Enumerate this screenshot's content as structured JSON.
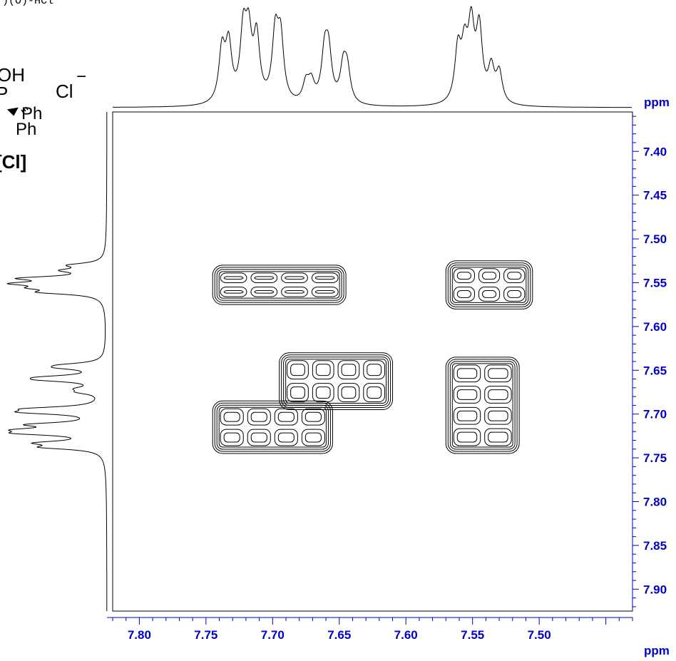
{
  "chart_data": {
    "type": "heatmap",
    "title": "",
    "x_axis": {
      "unit_label": "ppm",
      "range": [
        7.82,
        7.43
      ],
      "reversed": true,
      "tick_labels": [
        "7.80",
        "7.75",
        "7.70",
        "7.65",
        "7.60",
        "7.55",
        "7.50"
      ]
    },
    "y_axis": {
      "unit_label": "ppm",
      "range": [
        7.355,
        7.925
      ],
      "reversed": true,
      "tick_labels": [
        "7.40",
        "7.45",
        "7.50",
        "7.55",
        "7.60",
        "7.65",
        "7.70",
        "7.75",
        "7.80",
        "7.85",
        "7.90"
      ]
    },
    "projection_peaks": [
      {
        "ppm": 7.738,
        "height": 0.73
      },
      {
        "ppm": 7.733,
        "height": 0.78
      },
      {
        "ppm": 7.722,
        "height": 0.93
      },
      {
        "ppm": 7.718,
        "height": 0.85
      },
      {
        "ppm": 7.712,
        "height": 0.88
      },
      {
        "ppm": 7.698,
        "height": 0.92
      },
      {
        "ppm": 7.694,
        "height": 0.86
      },
      {
        "ppm": 7.675,
        "height": 0.27
      },
      {
        "ppm": 7.671,
        "height": 0.27
      },
      {
        "ppm": 7.661,
        "height": 0.65
      },
      {
        "ppm": 7.658,
        "height": 0.65
      },
      {
        "ppm": 7.647,
        "height": 0.48
      },
      {
        "ppm": 7.644,
        "height": 0.44
      },
      {
        "ppm": 7.561,
        "height": 0.73
      },
      {
        "ppm": 7.556,
        "height": 0.68
      },
      {
        "ppm": 7.551,
        "height": 1.0
      },
      {
        "ppm": 7.545,
        "height": 1.0
      },
      {
        "ppm": 7.536,
        "height": 0.47
      },
      {
        "ppm": 7.53,
        "height": 0.43
      }
    ],
    "cross_peak_regions": [
      {
        "x": [
          7.745,
          7.645
        ],
        "y": [
          7.53,
          7.575
        ]
      },
      {
        "x": [
          7.57,
          7.505
        ],
        "y": [
          7.525,
          7.58
        ]
      },
      {
        "x": [
          7.745,
          7.655
        ],
        "y": [
          7.685,
          7.745
        ]
      },
      {
        "x": [
          7.695,
          7.61
        ],
        "y": [
          7.63,
          7.695
        ]
      },
      {
        "x": [
          7.57,
          7.515
        ],
        "y": [
          7.635,
          7.745
        ]
      }
    ]
  },
  "structure": {
    "header": "·)(O)-HCl",
    "oh": "OH",
    "anion": "Cl",
    "anion_charge": "−",
    "ph_upper": "Ph",
    "ph_lower": "Ph",
    "label": "[Cl]",
    "fragment": "P"
  }
}
